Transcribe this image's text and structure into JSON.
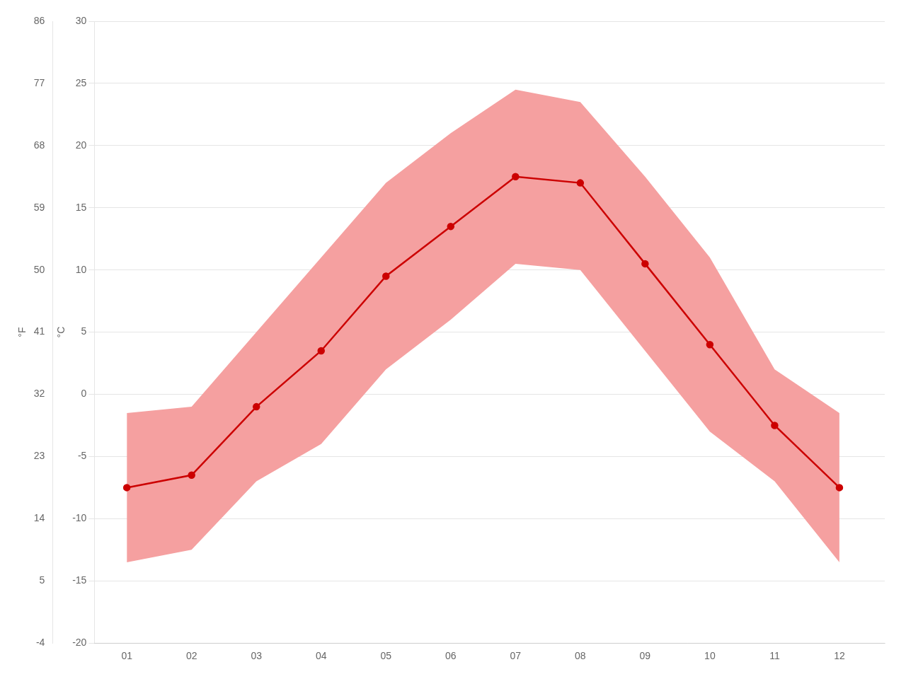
{
  "chart_data": {
    "type": "line",
    "x": [
      1,
      2,
      3,
      4,
      5,
      6,
      7,
      8,
      9,
      10,
      11,
      12
    ],
    "xlim": [
      0.5,
      12.7
    ],
    "xticks": [
      {
        "value": 1,
        "label": "01"
      },
      {
        "value": 2,
        "label": "02"
      },
      {
        "value": 3,
        "label": "03"
      },
      {
        "value": 4,
        "label": "04"
      },
      {
        "value": 5,
        "label": "05"
      },
      {
        "value": 6,
        "label": "06"
      },
      {
        "value": 7,
        "label": "07"
      },
      {
        "value": 8,
        "label": "08"
      },
      {
        "value": 9,
        "label": "09"
      },
      {
        "value": 10,
        "label": "10"
      },
      {
        "value": 11,
        "label": "11"
      },
      {
        "value": 12,
        "label": "12"
      }
    ],
    "ylim": [
      -20,
      30
    ],
    "yticks": [
      -20,
      -15,
      -10,
      -5,
      0,
      5,
      10,
      15,
      20,
      25,
      30
    ],
    "ylabel": "°C",
    "y2lim": [
      -4,
      86
    ],
    "y2ticks": [
      -4,
      5,
      14,
      23,
      32,
      41,
      50,
      59,
      68,
      77,
      86
    ],
    "y2label": "°F",
    "grid": true,
    "series": [
      {
        "type": "band",
        "color": "#f5a0a0",
        "low": [
          -13.5,
          -12.5,
          -7.0,
          -4.0,
          2.0,
          6.0,
          10.5,
          10.0,
          3.5,
          -3.0,
          -7.0,
          -13.5
        ],
        "high": [
          -1.5,
          -1.0,
          5.0,
          11.0,
          17.0,
          21.0,
          24.5,
          23.5,
          17.5,
          11.0,
          2.0,
          -1.5
        ]
      },
      {
        "type": "line",
        "color": "#cc0000",
        "marker": "circle",
        "values": [
          -7.5,
          -6.5,
          -1.0,
          3.5,
          9.5,
          13.5,
          17.5,
          17.0,
          10.5,
          4.0,
          -2.5,
          -7.5
        ]
      }
    ]
  }
}
